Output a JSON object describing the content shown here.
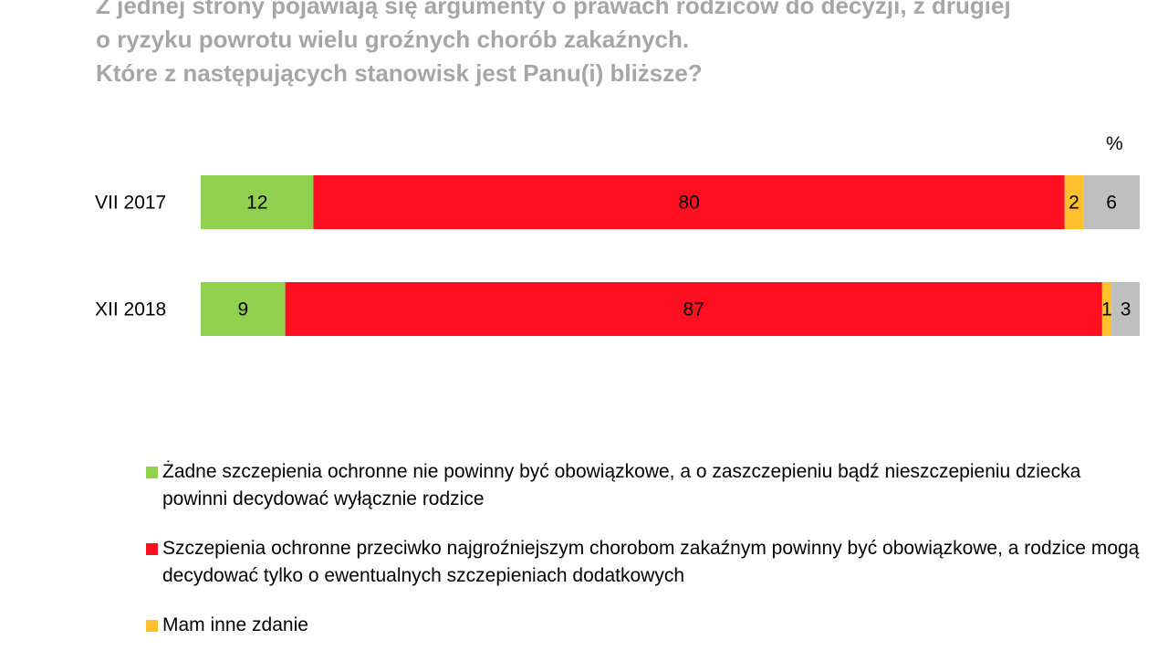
{
  "title_lines": [
    "Z jednej strony pojawiają się argumenty o prawach rodziców do decyzji, z drugiej",
    "o ryzyku powrotu wielu groźnych chorób zakaźnych.",
    "Które z następujących stanowisk jest Panu(i) bliższe?"
  ],
  "unit": "%",
  "colors": {
    "green": "#92d050",
    "red": "#ff1021",
    "yellow": "#ffc02e",
    "gray": "#bfbfbf"
  },
  "legend": [
    {
      "label": "Żadne szczepienia ochronne nie powinny być obowiązkowe, a o zaszczepieniu bądź nieszczepieniu dziecka powinni decydować wyłącznie rodzice",
      "color": "#92d050"
    },
    {
      "label": "Szczepienia ochronne przeciwko najgroźniejszym chorobom zakaźnym powinny być obowiązkowe, a rodzice mogą decydować tylko o ewentualnych szczepieniach dodatkowych",
      "color": "#ff1021"
    },
    {
      "label": "Mam inne zdanie",
      "color": "#ffc02e"
    }
  ],
  "chart_data": {
    "type": "bar",
    "stacked": true,
    "orientation": "horizontal",
    "categories": [
      "VII 2017",
      "XII 2018"
    ],
    "series": [
      {
        "name": "Żadne szczepienia ochronne nie powinny być obowiązkowe, a o zaszczepieniu bądź nieszczepieniu dziecka powinni decydować wyłącznie rodzice",
        "color": "#92d050",
        "values": [
          12,
          9
        ]
      },
      {
        "name": "Szczepienia ochronne przeciwko najgroźniejszym chorobom zakaźnym powinny być obowiązkowe, a rodzice mogą decydować tylko o ewentualnych szczepieniach dodatkowych",
        "color": "#ff1021",
        "values": [
          80,
          87
        ]
      },
      {
        "name": "Mam inne zdanie",
        "color": "#ffc02e",
        "values": [
          2,
          1
        ]
      },
      {
        "color": "#bfbfbf",
        "values": [
          6,
          3
        ]
      }
    ],
    "xlim": [
      0,
      100
    ]
  }
}
